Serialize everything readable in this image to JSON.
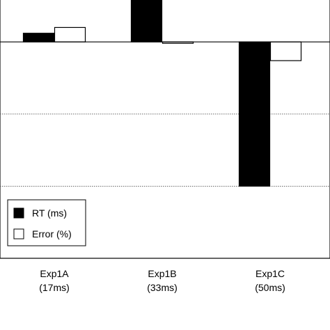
{
  "chart_data": {
    "type": "bar",
    "categories": [
      "Exp1A",
      "Exp1B",
      "Exp1C"
    ],
    "category_sublabels": [
      "(17ms)",
      "(33ms)",
      "(50ms)"
    ],
    "series": [
      {
        "name": "RT (ms)",
        "values": [
          3,
          18,
          -50
        ],
        "color": "#000000"
      },
      {
        "name": "Error (%)",
        "values": [
          5,
          -0.5,
          -6.5
        ],
        "color": "#ffffff"
      }
    ],
    "ylim": [
      -75,
      15
    ],
    "gridlines": [
      -25,
      -50
    ],
    "grid": true,
    "legend": {
      "position": "bottom-left",
      "entries": [
        "RT (ms)",
        "Error (%)"
      ]
    },
    "title": "",
    "xlabel": "",
    "ylabel": ""
  }
}
